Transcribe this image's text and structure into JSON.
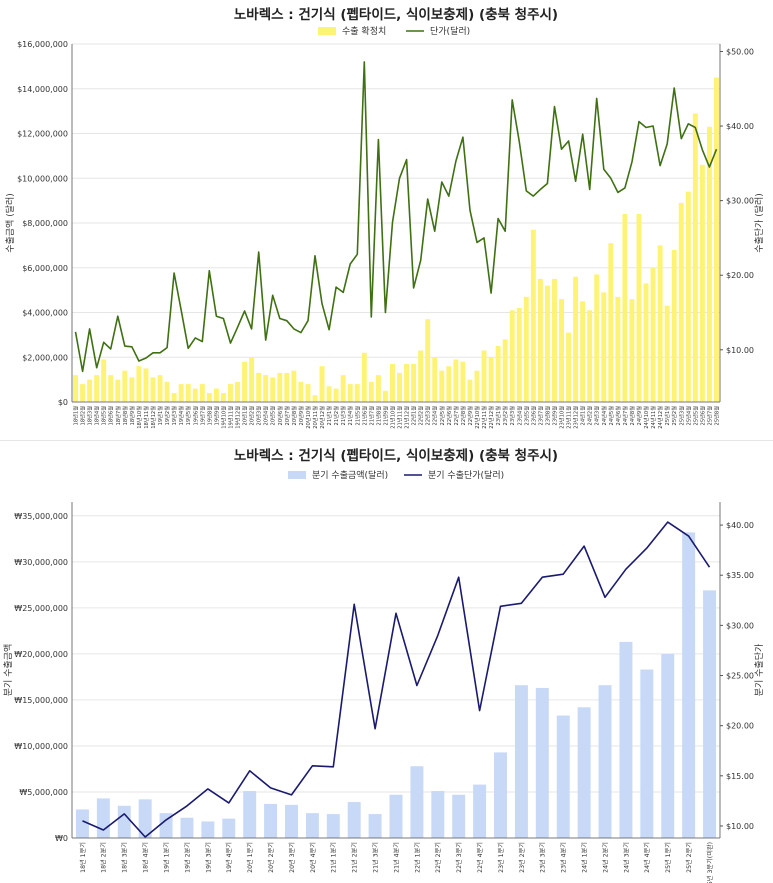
{
  "colors": {
    "monthly_bar": "#fef375",
    "monthly_line": "#3f7012",
    "quarterly_bar": "#c7d9f6",
    "quarterly_line": "#1a1a70",
    "grid": "#e6e6e6"
  },
  "chart_data": [
    {
      "type": "bar",
      "title": "노바렉스 : 건기식 (펩타이드, 식이보충제) (충북 청주시)",
      "legend": [
        "수출 확정치",
        "단가(달러)"
      ],
      "legend_position": "top-center",
      "grid": true,
      "ylabel": "수출금액 (달러)",
      "y2label": "수출단가 (달러)",
      "ylim": [
        0,
        16000000
      ],
      "y2lim": [
        3,
        51
      ],
      "y_ticks": [
        "$0",
        "$2,000,000",
        "$4,000,000",
        "$6,000,000",
        "$8,000,000",
        "$10,000,000",
        "$12,000,000",
        "$14,000,000",
        "$16,000,000"
      ],
      "y_tick_values": [
        0,
        2000000,
        4000000,
        6000000,
        8000000,
        10000000,
        12000000,
        14000000,
        16000000
      ],
      "y2_ticks": [
        "$10.00",
        "$20.00",
        "$30.00",
        "$40.00",
        "$50.00"
      ],
      "y2_tick_values": [
        10,
        20,
        30,
        40,
        50
      ],
      "categories": [
        "18년1월",
        "18년2월",
        "18년3월",
        "18년4월",
        "18년5월",
        "18년6월",
        "18년7월",
        "18년8월",
        "18년9월",
        "18년10월",
        "18년11월",
        "18년12월",
        "19년1월",
        "19년2월",
        "19년3월",
        "19년4월",
        "19년5월",
        "19년6월",
        "19년7월",
        "19년8월",
        "19년9월",
        "19년10월",
        "19년11월",
        "19년12월",
        "20년1월",
        "20년2월",
        "20년3월",
        "20년4월",
        "20년5월",
        "20년6월",
        "20년7월",
        "20년8월",
        "20년9월",
        "20년10월",
        "20년11월",
        "20년12월",
        "21년1월",
        "21년2월",
        "21년3월",
        "21년4월",
        "21년5월",
        "21년6월",
        "21년7월",
        "21년8월",
        "21년9월",
        "21년10월",
        "21년11월",
        "21년12월",
        "22년1월",
        "22년2월",
        "22년3월",
        "22년4월",
        "22년5월",
        "22년6월",
        "22년7월",
        "22년8월",
        "22년9월",
        "22년10월",
        "22년11월",
        "22년12월",
        "23년1월",
        "23년2월",
        "23년3월",
        "23년4월",
        "23년5월",
        "23년6월",
        "23년7월",
        "23년8월",
        "23년9월",
        "23년10월",
        "23년11월",
        "23년12월",
        "24년1월",
        "24년2월",
        "24년3월",
        "24년4월",
        "24년5월",
        "24년6월",
        "24년7월",
        "24년8월",
        "24년9월",
        "24년10월",
        "24년11월",
        "24년12월",
        "25년1월",
        "25년2월",
        "25년3월",
        "25년4월",
        "25년5월",
        "25년6월",
        "25년7월",
        "25년8월"
      ],
      "series": [
        {
          "name": "수출 확정치",
          "type": "bar",
          "values": [
            1200000,
            800000,
            1000000,
            1200000,
            1900000,
            1200000,
            1000000,
            1400000,
            1100000,
            1600000,
            1500000,
            1100000,
            1200000,
            900000,
            400000,
            800000,
            800000,
            600000,
            800000,
            400000,
            600000,
            400000,
            800000,
            900000,
            1800000,
            2000000,
            1300000,
            1200000,
            1100000,
            1300000,
            1300000,
            1400000,
            900000,
            800000,
            300000,
            1600000,
            700000,
            600000,
            1200000,
            800000,
            800000,
            2200000,
            900000,
            1200000,
            500000,
            1700000,
            1300000,
            1700000,
            1700000,
            2300000,
            3700000,
            2000000,
            1400000,
            1600000,
            1900000,
            1800000,
            1000000,
            1400000,
            2300000,
            2000000,
            2500000,
            2800000,
            4100000,
            4200000,
            4700000,
            7700000,
            5500000,
            5200000,
            5500000,
            4600000,
            3100000,
            5600000,
            4500000,
            4100000,
            5700000,
            4900000,
            7100000,
            4700000,
            8400000,
            4600000,
            8400000,
            5300000,
            6000000,
            7000000,
            4300000,
            6800000,
            8900000,
            9400000,
            12900000,
            10600000,
            12300000,
            14500000
          ]
        },
        {
          "name": "단가(달러)",
          "type": "line",
          "axis": "right",
          "values": [
            12.4,
            7.1,
            12.8,
            7.6,
            11.0,
            10.1,
            14.5,
            10.5,
            10.4,
            8.5,
            8.9,
            9.6,
            9.6,
            10.3,
            20.3,
            15.3,
            10.2,
            11.6,
            11.1,
            20.6,
            14.5,
            14.2,
            10.9,
            13.0,
            15.2,
            12.8,
            23.1,
            11.3,
            17.3,
            14.2,
            13.9,
            12.8,
            12.3,
            13.9,
            22.6,
            16.2,
            12.7,
            18.4,
            17.7,
            21.5,
            22.8,
            48.6,
            14.4,
            38.2,
            15.0,
            27.1,
            33.0,
            35.5,
            18.3,
            22.0,
            30.2,
            25.9,
            32.5,
            30.6,
            35.3,
            38.5,
            28.7,
            24.4,
            25.0,
            17.6,
            27.6,
            25.9,
            43.5,
            37.9,
            31.3,
            30.6,
            31.5,
            32.3,
            42.6,
            36.9,
            38.0,
            32.6,
            38.9,
            31.5,
            43.7,
            34.2,
            33.0,
            31.1,
            31.7,
            35.2,
            40.6,
            39.8,
            40.0,
            34.7,
            37.6,
            45.1,
            38.3,
            40.3,
            39.8,
            36.8,
            34.5,
            36.9
          ]
        }
      ]
    },
    {
      "type": "bar",
      "title": "노바렉스 : 건기식 (펩타이드, 식이보충제) (충북 청주시)",
      "legend": [
        "분기 수출금액(달러)",
        "분기 수출단가(달러)"
      ],
      "legend_position": "top-center",
      "grid": true,
      "ylabel": "분기 수출금액",
      "y2label": "분기 수출단가",
      "ylim": [
        0,
        36500000
      ],
      "y2lim": [
        8.8,
        42.3
      ],
      "y_ticks": [
        "₩0",
        "₩5,000,000",
        "₩10,000,000",
        "₩15,000,000",
        "₩20,000,000",
        "₩25,000,000",
        "₩30,000,000",
        "₩35,000,000"
      ],
      "y_tick_values": [
        0,
        5000000,
        10000000,
        15000000,
        20000000,
        25000000,
        30000000,
        35000000
      ],
      "y2_ticks": [
        "$10.00",
        "$15.00",
        "$20.00",
        "$25.00",
        "$30.00",
        "$35.00",
        "$40.00"
      ],
      "y2_tick_values": [
        10,
        15,
        20,
        25,
        30,
        35,
        40
      ],
      "categories": [
        "18년 1분기",
        "18년 2분기",
        "18년 3분기",
        "18년 4분기",
        "19년 1분기",
        "19년 2분기",
        "19년 3분기",
        "19년 4분기",
        "20년 1분기",
        "20년 2분기",
        "20년 3분기",
        "20년 4분기",
        "21년 1분기",
        "21년 2분기",
        "21년 3분기",
        "21년 4분기",
        "22년 1분기",
        "22년 2분기",
        "22년 3분기",
        "22년 4분기",
        "23년 1분기",
        "23년 2분기",
        "23년 3분기",
        "23년 4분기",
        "24년 1분기",
        "24년 2분기",
        "24년 3분기",
        "24년 4분기",
        "25년 1분기",
        "25년 2분기",
        "25년 3분기(미완)"
      ],
      "series": [
        {
          "name": "분기 수출금액(달러)",
          "type": "bar",
          "values": [
            3100000,
            4300000,
            3500000,
            4200000,
            2700000,
            2200000,
            1800000,
            2100000,
            5100000,
            3700000,
            3600000,
            2700000,
            2600000,
            3900000,
            2600000,
            4700000,
            7800000,
            5100000,
            4700000,
            5800000,
            9300000,
            16600000,
            16300000,
            13300000,
            14200000,
            16600000,
            21300000,
            18300000,
            20000000,
            33200000,
            26900000
          ]
        },
        {
          "name": "분기 수출단가(달러)",
          "type": "line",
          "axis": "right",
          "values": [
            10.5,
            9.6,
            11.2,
            8.9,
            10.6,
            12.0,
            13.7,
            12.3,
            15.5,
            13.8,
            13.1,
            16.0,
            15.9,
            32.1,
            19.7,
            31.2,
            24.0,
            29.0,
            34.8,
            21.5,
            31.9,
            32.2,
            34.8,
            35.1,
            37.9,
            32.8,
            35.6,
            37.7,
            40.3,
            38.9,
            35.8
          ]
        }
      ]
    }
  ]
}
